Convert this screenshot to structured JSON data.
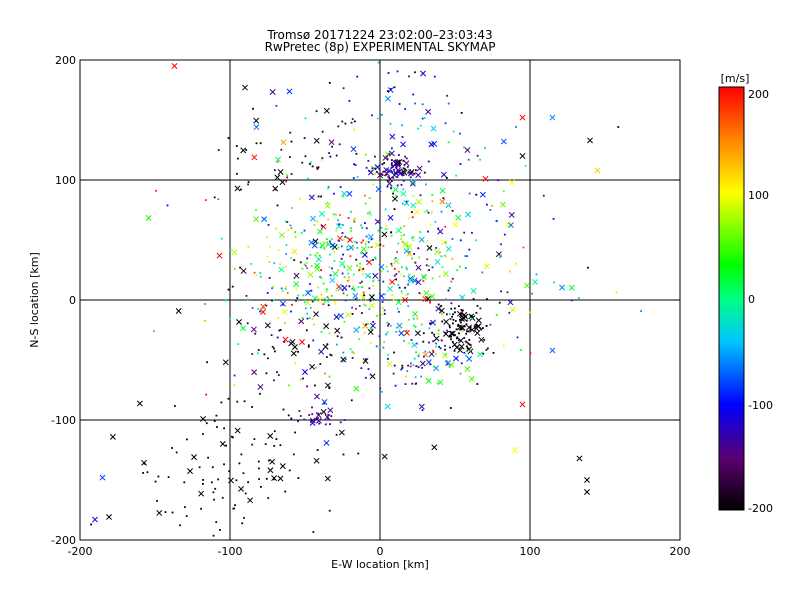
{
  "chart_data": {
    "type": "scatter",
    "title_line1": "Tromsø 20171224 23:02:00–23:03:43",
    "title_line2": "RwPretec (8p) EXPERIMENTAL SKYMAP",
    "xlabel": "E-W location [km]",
    "ylabel": "N-S location [km]",
    "xlim": [
      -200,
      200
    ],
    "ylim": [
      -200,
      200
    ],
    "x_ticks": [
      "-200",
      "-100",
      "0",
      "100",
      "200"
    ],
    "y_ticks": [
      "200",
      "100",
      "0",
      "-100",
      "-200"
    ],
    "grid": true,
    "colorbar": {
      "label": "[m/s]",
      "range": [
        -200,
        200
      ],
      "ticks": [
        "200",
        "100",
        "0",
        "-100",
        "-200"
      ],
      "colormap": "rainbow (black-purple-blue-cyan-green-yellow-red)"
    },
    "marker_types": [
      "dot",
      "x"
    ],
    "clusters": [
      {
        "cx": -15,
        "cy": 28,
        "sx": 40,
        "sy": 35,
        "n": 420,
        "vmean": 20,
        "vspread": 90
      },
      {
        "cx": 10,
        "cy": 108,
        "sx": 8,
        "sy": 6,
        "n": 90,
        "vmean": -160,
        "vspread": 30
      },
      {
        "cx": 55,
        "cy": -25,
        "sx": 10,
        "sy": 12,
        "n": 110,
        "vmean": -200,
        "vspread": 10
      },
      {
        "cx": 25,
        "cy": -45,
        "sx": 20,
        "sy": 18,
        "n": 110,
        "vmean": -80,
        "vspread": 110
      },
      {
        "cx": -100,
        "cy": -140,
        "sx": 40,
        "sy": 30,
        "n": 110,
        "vmean": -200,
        "vspread": 5
      },
      {
        "cx": -70,
        "cy": -40,
        "sx": 30,
        "sy": 40,
        "n": 70,
        "vmean": -200,
        "vspread": 20
      },
      {
        "cx": -60,
        "cy": 120,
        "sx": 25,
        "sy": 20,
        "n": 45,
        "vmean": -200,
        "vspread": 20
      },
      {
        "cx": 20,
        "cy": 155,
        "sx": 35,
        "sy": 35,
        "n": 60,
        "vmean": -120,
        "vspread": 60
      },
      {
        "cx": 10,
        "cy": 40,
        "sx": 60,
        "sy": 60,
        "n": 260,
        "vmean": -40,
        "vspread": 130
      },
      {
        "cx": -40,
        "cy": -98,
        "sx": 8,
        "sy": 4,
        "n": 25,
        "vmean": -160,
        "vspread": 20
      }
    ],
    "x_markers": [
      {
        "x": -137,
        "y": 195,
        "v": 200
      },
      {
        "x": -90,
        "y": 177,
        "v": -190
      },
      {
        "x": -95,
        "y": 93,
        "v": -200
      },
      {
        "x": -107,
        "y": 37,
        "v": 200
      },
      {
        "x": -40,
        "y": 57,
        "v": 20
      },
      {
        "x": -20,
        "y": 50,
        "v": 200
      },
      {
        "x": 95,
        "y": 152,
        "v": 200
      },
      {
        "x": 115,
        "y": 152,
        "v": -60
      },
      {
        "x": 140,
        "y": 133,
        "v": -200
      },
      {
        "x": 95,
        "y": 120,
        "v": -190
      },
      {
        "x": 145,
        "y": 108,
        "v": 120
      },
      {
        "x": 88,
        "y": 98,
        "v": 100
      },
      {
        "x": 98,
        "y": 12,
        "v": 50
      },
      {
        "x": 115,
        "y": -42,
        "v": -70
      },
      {
        "x": 95,
        "y": -87,
        "v": 200
      },
      {
        "x": 90,
        "y": -125,
        "v": 100
      },
      {
        "x": 133,
        "y": -132,
        "v": -200
      },
      {
        "x": 138,
        "y": -150,
        "v": -200
      },
      {
        "x": 138,
        "y": -160,
        "v": -200
      },
      {
        "x": -185,
        "y": -148,
        "v": -80
      },
      {
        "x": -190,
        "y": -183,
        "v": -120
      },
      {
        "x": -63,
        "y": -33,
        "v": 200
      },
      {
        "x": -52,
        "y": -35,
        "v": 200
      },
      {
        "x": -50,
        "y": -60,
        "v": -100
      },
      {
        "x": -78,
        "y": -10,
        "v": 200
      },
      {
        "x": -37,
        "y": -85,
        "v": -80
      }
    ]
  }
}
